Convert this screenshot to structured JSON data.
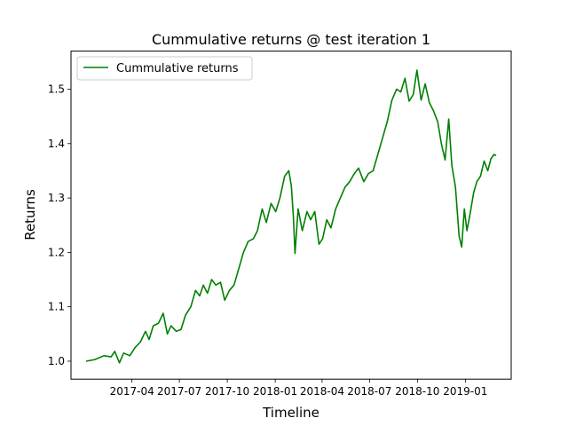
{
  "chart_data": {
    "type": "line",
    "title": "Cummulative returns @ test iteration 1",
    "xlabel": "Timeline",
    "ylabel": "Returns",
    "x_start": "2017-01-03",
    "x_end": "2019-03-01",
    "xlim": [
      "2016-12-05",
      "2019-03-30"
    ],
    "ylim": [
      0.967,
      1.57
    ],
    "x_ticks": [
      "2017-04",
      "2017-07",
      "2017-10",
      "2018-01",
      "2018-04",
      "2018-07",
      "2018-10",
      "2019-01"
    ],
    "y_ticks": [
      "1.0",
      "1.1",
      "1.2",
      "1.3",
      "1.4",
      "1.5"
    ],
    "grid": false,
    "legend_position": "upper-left",
    "series": [
      {
        "name": "Cummulative returns",
        "color": "#008000",
        "points": [
          [
            "2017-01-03",
            1.0
          ],
          [
            "2017-01-20",
            1.003
          ],
          [
            "2017-02-06",
            1.01
          ],
          [
            "2017-02-20",
            1.008
          ],
          [
            "2017-02-27",
            1.018
          ],
          [
            "2017-03-08",
            0.997
          ],
          [
            "2017-03-16",
            1.015
          ],
          [
            "2017-03-28",
            1.01
          ],
          [
            "2017-04-07",
            1.025
          ],
          [
            "2017-04-17",
            1.035
          ],
          [
            "2017-04-27",
            1.055
          ],
          [
            "2017-05-04",
            1.04
          ],
          [
            "2017-05-12",
            1.065
          ],
          [
            "2017-05-22",
            1.07
          ],
          [
            "2017-05-31",
            1.088
          ],
          [
            "2017-06-08",
            1.05
          ],
          [
            "2017-06-15",
            1.065
          ],
          [
            "2017-06-25",
            1.055
          ],
          [
            "2017-07-04",
            1.058
          ],
          [
            "2017-07-13",
            1.085
          ],
          [
            "2017-07-23",
            1.1
          ],
          [
            "2017-08-01",
            1.13
          ],
          [
            "2017-08-09",
            1.12
          ],
          [
            "2017-08-16",
            1.14
          ],
          [
            "2017-08-24",
            1.125
          ],
          [
            "2017-09-01",
            1.15
          ],
          [
            "2017-09-09",
            1.14
          ],
          [
            "2017-09-18",
            1.145
          ],
          [
            "2017-09-26",
            1.112
          ],
          [
            "2017-10-05",
            1.13
          ],
          [
            "2017-10-14",
            1.14
          ],
          [
            "2017-10-23",
            1.17
          ],
          [
            "2017-11-01",
            1.2
          ],
          [
            "2017-11-10",
            1.22
          ],
          [
            "2017-11-20",
            1.225
          ],
          [
            "2017-11-28",
            1.24
          ],
          [
            "2017-12-07",
            1.28
          ],
          [
            "2017-12-15",
            1.255
          ],
          [
            "2017-12-24",
            1.29
          ],
          [
            "2018-01-02",
            1.275
          ],
          [
            "2018-01-10",
            1.3
          ],
          [
            "2018-01-19",
            1.34
          ],
          [
            "2018-01-27",
            1.35
          ],
          [
            "2018-02-01",
            1.322
          ],
          [
            "2018-02-05",
            1.265
          ],
          [
            "2018-02-08",
            1.198
          ],
          [
            "2018-02-14",
            1.28
          ],
          [
            "2018-02-22",
            1.24
          ],
          [
            "2018-03-03",
            1.275
          ],
          [
            "2018-03-10",
            1.26
          ],
          [
            "2018-03-18",
            1.275
          ],
          [
            "2018-03-26",
            1.215
          ],
          [
            "2018-04-02",
            1.225
          ],
          [
            "2018-04-10",
            1.26
          ],
          [
            "2018-04-18",
            1.245
          ],
          [
            "2018-04-27",
            1.28
          ],
          [
            "2018-05-06",
            1.3
          ],
          [
            "2018-05-15",
            1.32
          ],
          [
            "2018-05-24",
            1.33
          ],
          [
            "2018-06-02",
            1.345
          ],
          [
            "2018-06-10",
            1.355
          ],
          [
            "2018-06-20",
            1.33
          ],
          [
            "2018-06-29",
            1.345
          ],
          [
            "2018-07-08",
            1.35
          ],
          [
            "2018-07-17",
            1.38
          ],
          [
            "2018-07-26",
            1.41
          ],
          [
            "2018-08-04",
            1.44
          ],
          [
            "2018-08-13",
            1.48
          ],
          [
            "2018-08-22",
            1.5
          ],
          [
            "2018-08-30",
            1.495
          ],
          [
            "2018-09-07",
            1.52
          ],
          [
            "2018-09-15",
            1.478
          ],
          [
            "2018-09-23",
            1.49
          ],
          [
            "2018-09-30",
            1.535
          ],
          [
            "2018-10-08",
            1.48
          ],
          [
            "2018-10-16",
            1.51
          ],
          [
            "2018-10-24",
            1.475
          ],
          [
            "2018-11-01",
            1.46
          ],
          [
            "2018-11-09",
            1.44
          ],
          [
            "2018-11-16",
            1.4
          ],
          [
            "2018-11-23",
            1.37
          ],
          [
            "2018-11-30",
            1.445
          ],
          [
            "2018-12-06",
            1.36
          ],
          [
            "2018-12-13",
            1.32
          ],
          [
            "2018-12-20",
            1.23
          ],
          [
            "2018-12-25",
            1.21
          ],
          [
            "2018-12-30",
            1.28
          ],
          [
            "2019-01-04",
            1.24
          ],
          [
            "2019-01-10",
            1.27
          ],
          [
            "2019-01-17",
            1.31
          ],
          [
            "2019-01-23",
            1.33
          ],
          [
            "2019-01-30",
            1.34
          ],
          [
            "2019-02-06",
            1.368
          ],
          [
            "2019-02-13",
            1.35
          ],
          [
            "2019-02-19",
            1.372
          ],
          [
            "2019-02-25",
            1.38
          ],
          [
            "2019-03-01",
            1.378
          ]
        ]
      }
    ]
  }
}
